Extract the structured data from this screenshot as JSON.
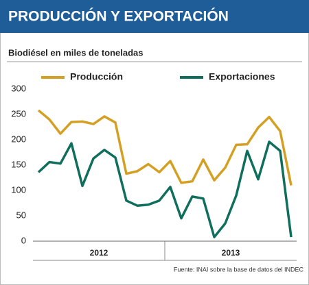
{
  "chart_data": {
    "type": "line",
    "title": "PRODUCCIÓN Y EXPORTACIÓN",
    "subtitle": "Biodiésel en miles de toneladas",
    "source": "Fuente: INAI sobre la base de datos del INDEC",
    "categories": [
      null,
      null,
      null,
      null,
      null,
      null,
      null,
      null,
      null,
      null,
      null,
      null,
      null,
      null,
      null,
      null,
      null,
      null,
      null,
      null,
      null,
      null,
      null,
      null
    ],
    "year_labels": [
      "2012",
      "2013"
    ],
    "series": [
      {
        "name": "Producción",
        "color": "#d4a024",
        "values": [
          258,
          240,
          212,
          235,
          236,
          231,
          246,
          234,
          133,
          138,
          152,
          136,
          158,
          115,
          118,
          161,
          120,
          145,
          190,
          191,
          224,
          245,
          217,
          110
        ]
      },
      {
        "name": "Exportaciones",
        "color": "#0f6e5c",
        "values": [
          136,
          156,
          153,
          193,
          109,
          163,
          180,
          165,
          80,
          70,
          72,
          80,
          107,
          45,
          88,
          84,
          8,
          35,
          90,
          178,
          122,
          196,
          178,
          8
        ]
      }
    ],
    "ylim": [
      0,
      300
    ],
    "yticks": [
      0,
      50,
      100,
      150,
      200,
      250,
      300
    ],
    "grid": false
  }
}
